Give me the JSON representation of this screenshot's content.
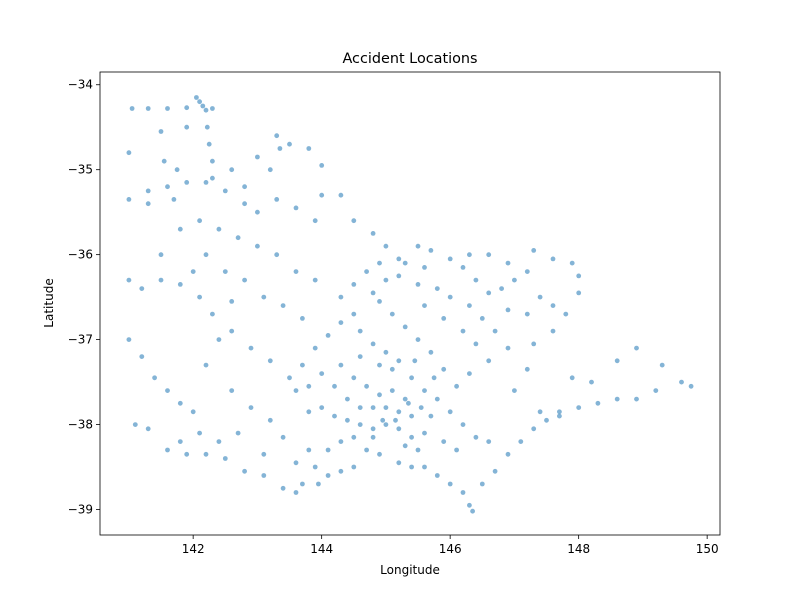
{
  "chart_data": {
    "type": "scatter",
    "title": "Accident Locations",
    "xlabel": "Longitude",
    "ylabel": "Latitude",
    "xlim": [
      140.55,
      150.2
    ],
    "ylim": [
      -39.3,
      -33.85
    ],
    "x_ticks": [
      142,
      144,
      146,
      148,
      150
    ],
    "y_ticks": [
      -34,
      -35,
      -36,
      -37,
      -38,
      -39
    ],
    "x_tick_labels": [
      "142",
      "144",
      "146",
      "148",
      "150"
    ],
    "y_tick_labels": [
      "−34",
      "−35",
      "−36",
      "−37",
      "−38",
      "−39"
    ],
    "grid": false,
    "marker_color": "#1f77b4",
    "marker_alpha": 0.55,
    "series": [
      {
        "points": [
          [
            141.05,
            -34.28
          ],
          [
            141.3,
            -34.28
          ],
          [
            141.6,
            -34.28
          ],
          [
            141.9,
            -34.27
          ],
          [
            142.3,
            -34.28
          ],
          [
            142.05,
            -34.15
          ],
          [
            142.1,
            -34.2
          ],
          [
            142.15,
            -34.25
          ],
          [
            142.2,
            -34.3
          ],
          [
            142.22,
            -34.5
          ],
          [
            142.25,
            -34.7
          ],
          [
            141.5,
            -34.55
          ],
          [
            141.9,
            -34.5
          ],
          [
            141.55,
            -34.9
          ],
          [
            141.75,
            -35.0
          ],
          [
            142.3,
            -34.9
          ],
          [
            142.3,
            -35.1
          ],
          [
            143.3,
            -34.6
          ],
          [
            143.35,
            -34.75
          ],
          [
            143.5,
            -34.7
          ],
          [
            143.8,
            -34.75
          ],
          [
            144.0,
            -34.95
          ],
          [
            143.0,
            -34.85
          ],
          [
            143.2,
            -35.0
          ],
          [
            142.8,
            -35.2
          ],
          [
            142.6,
            -35.0
          ],
          [
            141.0,
            -34.8
          ],
          [
            141.0,
            -35.35
          ],
          [
            141.3,
            -35.25
          ],
          [
            141.3,
            -35.4
          ],
          [
            141.7,
            -35.35
          ],
          [
            141.6,
            -35.2
          ],
          [
            141.9,
            -35.15
          ],
          [
            142.2,
            -35.15
          ],
          [
            142.5,
            -35.25
          ],
          [
            142.8,
            -35.4
          ],
          [
            143.0,
            -35.5
          ],
          [
            143.3,
            -35.35
          ],
          [
            143.6,
            -35.45
          ],
          [
            143.9,
            -35.6
          ],
          [
            144.0,
            -35.3
          ],
          [
            144.3,
            -35.3
          ],
          [
            144.5,
            -35.6
          ],
          [
            144.8,
            -35.75
          ],
          [
            145.0,
            -35.9
          ],
          [
            145.2,
            -36.05
          ],
          [
            145.5,
            -35.9
          ],
          [
            145.7,
            -35.95
          ],
          [
            146.0,
            -36.05
          ],
          [
            146.3,
            -36.0
          ],
          [
            146.6,
            -36.0
          ],
          [
            146.9,
            -36.1
          ],
          [
            147.3,
            -35.95
          ],
          [
            147.6,
            -36.05
          ],
          [
            147.9,
            -36.1
          ],
          [
            148.0,
            -36.25
          ],
          [
            148.0,
            -36.45
          ],
          [
            147.8,
            -36.7
          ],
          [
            147.6,
            -36.9
          ],
          [
            147.3,
            -37.05
          ],
          [
            147.2,
            -37.35
          ],
          [
            147.0,
            -37.6
          ],
          [
            147.4,
            -37.85
          ],
          [
            147.7,
            -37.85
          ],
          [
            148.0,
            -37.8
          ],
          [
            148.3,
            -37.75
          ],
          [
            148.6,
            -37.7
          ],
          [
            148.9,
            -37.7
          ],
          [
            149.2,
            -37.6
          ],
          [
            149.6,
            -37.5
          ],
          [
            149.75,
            -37.55
          ],
          [
            149.3,
            -37.3
          ],
          [
            148.9,
            -37.1
          ],
          [
            148.6,
            -37.25
          ],
          [
            148.2,
            -37.5
          ],
          [
            147.9,
            -37.45
          ],
          [
            141.0,
            -36.3
          ],
          [
            141.2,
            -36.4
          ],
          [
            141.5,
            -36.3
          ],
          [
            141.8,
            -36.35
          ],
          [
            142.1,
            -36.5
          ],
          [
            142.3,
            -36.7
          ],
          [
            142.6,
            -36.9
          ],
          [
            142.9,
            -37.1
          ],
          [
            143.2,
            -37.25
          ],
          [
            143.5,
            -37.45
          ],
          [
            143.8,
            -37.55
          ],
          [
            141.0,
            -37.0
          ],
          [
            141.2,
            -37.2
          ],
          [
            141.4,
            -37.45
          ],
          [
            141.6,
            -37.6
          ],
          [
            141.8,
            -37.75
          ],
          [
            142.0,
            -37.85
          ],
          [
            141.1,
            -38.0
          ],
          [
            141.3,
            -38.05
          ],
          [
            141.6,
            -38.3
          ],
          [
            141.9,
            -38.35
          ],
          [
            142.2,
            -38.35
          ],
          [
            142.5,
            -38.4
          ],
          [
            142.8,
            -38.55
          ],
          [
            143.1,
            -38.6
          ],
          [
            143.4,
            -38.75
          ],
          [
            143.6,
            -38.8
          ],
          [
            143.9,
            -38.5
          ],
          [
            144.1,
            -38.3
          ],
          [
            144.3,
            -38.2
          ],
          [
            144.5,
            -38.15
          ],
          [
            144.7,
            -38.3
          ],
          [
            144.9,
            -38.35
          ],
          [
            145.2,
            -38.45
          ],
          [
            145.4,
            -38.5
          ],
          [
            145.6,
            -38.5
          ],
          [
            145.8,
            -38.6
          ],
          [
            146.0,
            -38.7
          ],
          [
            146.2,
            -38.8
          ],
          [
            146.3,
            -38.95
          ],
          [
            146.35,
            -39.02
          ],
          [
            146.5,
            -38.7
          ],
          [
            146.7,
            -38.55
          ],
          [
            146.9,
            -38.35
          ],
          [
            147.1,
            -38.2
          ],
          [
            147.3,
            -38.05
          ],
          [
            147.5,
            -37.95
          ],
          [
            147.7,
            -37.9
          ],
          [
            144.0,
            -37.4
          ],
          [
            144.2,
            -37.55
          ],
          [
            144.4,
            -37.7
          ],
          [
            144.6,
            -37.8
          ],
          [
            144.8,
            -37.8
          ],
          [
            145.0,
            -37.8
          ],
          [
            145.2,
            -37.85
          ],
          [
            145.4,
            -37.9
          ],
          [
            145.3,
            -37.7
          ],
          [
            145.1,
            -37.6
          ],
          [
            144.9,
            -37.65
          ],
          [
            144.7,
            -37.55
          ],
          [
            144.5,
            -37.45
          ],
          [
            144.3,
            -37.3
          ],
          [
            144.6,
            -37.2
          ],
          [
            144.9,
            -37.3
          ],
          [
            145.1,
            -37.35
          ],
          [
            145.4,
            -37.45
          ],
          [
            145.6,
            -37.6
          ],
          [
            145.8,
            -37.7
          ],
          [
            146.0,
            -37.85
          ],
          [
            146.2,
            -38.0
          ],
          [
            146.4,
            -38.15
          ],
          [
            146.6,
            -38.2
          ],
          [
            146.1,
            -38.3
          ],
          [
            145.9,
            -38.2
          ],
          [
            145.6,
            -38.1
          ],
          [
            145.4,
            -38.15
          ],
          [
            145.2,
            -38.05
          ],
          [
            145.0,
            -38.0
          ],
          [
            144.8,
            -38.05
          ],
          [
            144.6,
            -38.0
          ],
          [
            144.4,
            -37.95
          ],
          [
            144.2,
            -37.9
          ],
          [
            144.0,
            -37.8
          ],
          [
            143.8,
            -37.85
          ],
          [
            143.6,
            -37.6
          ],
          [
            143.7,
            -37.3
          ],
          [
            143.9,
            -37.1
          ],
          [
            144.1,
            -36.95
          ],
          [
            144.3,
            -36.8
          ],
          [
            144.5,
            -36.7
          ],
          [
            144.3,
            -36.5
          ],
          [
            144.5,
            -36.35
          ],
          [
            144.7,
            -36.2
          ],
          [
            144.9,
            -36.1
          ],
          [
            145.2,
            -36.25
          ],
          [
            145.5,
            -36.35
          ],
          [
            145.8,
            -36.4
          ],
          [
            146.0,
            -36.5
          ],
          [
            146.3,
            -36.6
          ],
          [
            146.5,
            -36.75
          ],
          [
            146.7,
            -36.9
          ],
          [
            146.9,
            -37.1
          ],
          [
            146.6,
            -37.25
          ],
          [
            146.3,
            -37.4
          ],
          [
            146.1,
            -37.55
          ],
          [
            145.9,
            -37.35
          ],
          [
            145.7,
            -37.15
          ],
          [
            145.5,
            -37.0
          ],
          [
            145.3,
            -36.85
          ],
          [
            145.1,
            -36.7
          ],
          [
            144.9,
            -36.55
          ],
          [
            145.6,
            -36.6
          ],
          [
            145.9,
            -36.75
          ],
          [
            146.2,
            -36.9
          ],
          [
            146.4,
            -37.05
          ],
          [
            145.7,
            -37.9
          ],
          [
            145.5,
            -38.3
          ],
          [
            145.3,
            -38.25
          ],
          [
            144.8,
            -38.15
          ],
          [
            144.95,
            -37.95
          ],
          [
            145.15,
            -37.95
          ],
          [
            145.35,
            -37.75
          ],
          [
            145.55,
            -37.8
          ],
          [
            144.5,
            -38.5
          ],
          [
            144.3,
            -38.55
          ],
          [
            144.1,
            -38.6
          ],
          [
            143.95,
            -38.7
          ],
          [
            143.7,
            -38.7
          ],
          [
            146.8,
            -36.4
          ],
          [
            147.0,
            -36.3
          ],
          [
            147.2,
            -36.2
          ],
          [
            147.4,
            -36.5
          ],
          [
            147.6,
            -36.6
          ],
          [
            147.2,
            -36.7
          ],
          [
            146.9,
            -36.65
          ],
          [
            146.6,
            -36.45
          ],
          [
            146.4,
            -36.3
          ],
          [
            146.2,
            -36.15
          ],
          [
            145.6,
            -36.15
          ],
          [
            145.3,
            -36.1
          ],
          [
            145.0,
            -36.3
          ],
          [
            144.8,
            -36.45
          ],
          [
            144.6,
            -36.9
          ],
          [
            144.8,
            -37.05
          ],
          [
            145.0,
            -37.15
          ],
          [
            145.2,
            -37.25
          ],
          [
            145.45,
            -37.25
          ],
          [
            145.75,
            -37.45
          ],
          [
            142.0,
            -36.2
          ],
          [
            142.2,
            -36.0
          ],
          [
            142.5,
            -36.2
          ],
          [
            142.8,
            -36.3
          ],
          [
            143.1,
            -36.5
          ],
          [
            143.4,
            -36.6
          ],
          [
            143.7,
            -36.75
          ],
          [
            142.7,
            -35.8
          ],
          [
            143.0,
            -35.9
          ],
          [
            143.3,
            -36.0
          ],
          [
            143.6,
            -36.2
          ],
          [
            143.9,
            -36.3
          ],
          [
            141.5,
            -36.0
          ],
          [
            141.8,
            -35.7
          ],
          [
            142.1,
            -35.6
          ],
          [
            142.4,
            -35.7
          ],
          [
            142.6,
            -36.55
          ],
          [
            142.4,
            -37.0
          ],
          [
            142.2,
            -37.3
          ],
          [
            142.6,
            -37.6
          ],
          [
            142.9,
            -37.8
          ],
          [
            143.2,
            -37.95
          ],
          [
            143.4,
            -38.15
          ],
          [
            142.7,
            -38.1
          ],
          [
            142.4,
            -38.2
          ],
          [
            142.1,
            -38.1
          ],
          [
            141.8,
            -38.2
          ],
          [
            143.1,
            -38.35
          ],
          [
            143.6,
            -38.45
          ],
          [
            143.8,
            -38.3
          ]
        ]
      }
    ]
  }
}
